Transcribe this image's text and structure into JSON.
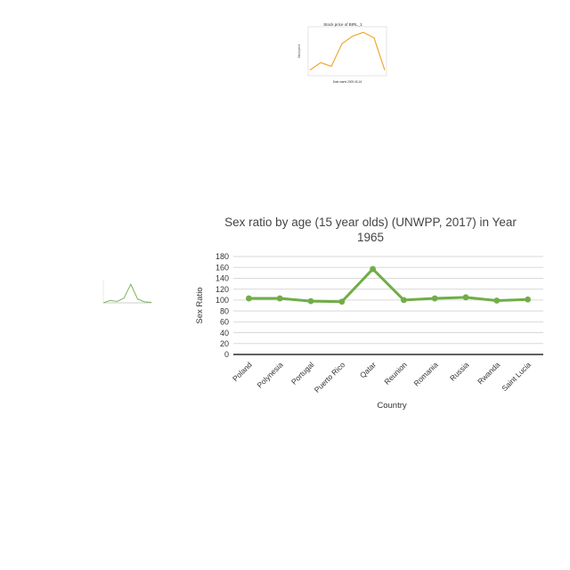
{
  "chart_data": [
    {
      "type": "line",
      "title": "Sex ratio by age (15 year olds) (UNWPP, 2017) in Year 1965",
      "xlabel": "Country",
      "ylabel": "Sex Ratio",
      "categories": [
        "Poland",
        "Polynesia",
        "Portugal",
        "Puerto Rico",
        "Qatar",
        "Reunion",
        "Romania",
        "Russia",
        "Rwanda",
        "Saint Lucia"
      ],
      "series": [
        {
          "values": [
            103,
            103,
            98,
            97,
            157,
            100,
            103,
            105,
            99,
            101
          ]
        }
      ],
      "ylim": [
        0,
        180
      ],
      "yticks": [
        0,
        20,
        40,
        60,
        80,
        100,
        120,
        140,
        160,
        180
      ],
      "grid": true,
      "legend": "none",
      "colors": {
        "line": "#70ad47",
        "grid": "#d9d9d9",
        "axis": "#000000"
      }
    },
    {
      "type": "line",
      "title": "Stock price of BIRL_1",
      "xlabel": "Date starts 2009-06-16",
      "ylabel": "Stock price",
      "x": [
        0,
        1,
        2,
        3,
        4,
        5,
        6,
        7
      ],
      "series": [
        {
          "values": [
            20.0,
            20.4,
            20.2,
            21.4,
            21.8,
            22.0,
            21.7,
            20.0
          ]
        }
      ],
      "ylim": [
        19.8,
        22.2
      ],
      "grid": false,
      "legend": "none",
      "colors": {
        "line": "#f0a830"
      }
    },
    {
      "type": "line",
      "title": "",
      "categories": [
        "",
        "",
        "",
        "",
        "",
        "",
        "",
        ""
      ],
      "series": [
        {
          "values": [
            0,
            5,
            3,
            10,
            40,
            8,
            2,
            1
          ]
        }
      ],
      "ylim": [
        0,
        50
      ],
      "grid": false,
      "legend": "none",
      "colors": {
        "line": "#70ad47"
      }
    }
  ]
}
